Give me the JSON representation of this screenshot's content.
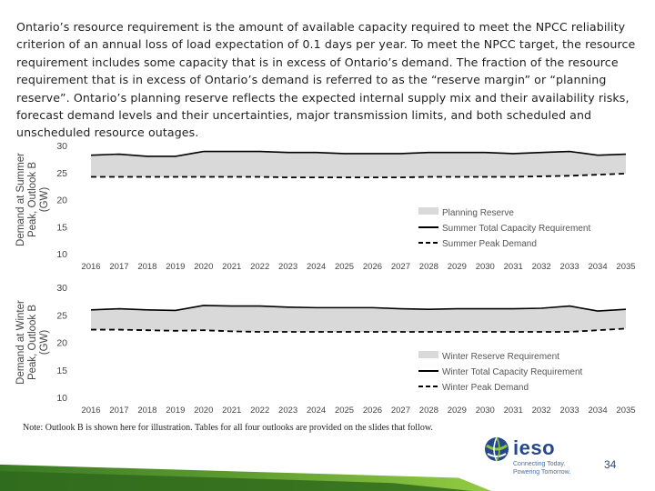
{
  "intro_text": "Ontario’s resource requirement is the amount of available capacity required to meet the NPCC reliability criterion of an annual loss of load expectation of 0.1 days per year. To meet the NPCC target, the resource requirement includes some capacity that is in excess of Ontario’s demand.  The fraction of the resource requirement that is in excess of Ontario’s demand is referred to as the “reserve margin” or “planning reserve”.  Ontario’s planning reserve reflects the expected internal supply mix  and their availability risks, forecast demand levels and their uncertainties, major transmission limits, and both scheduled and unscheduled resource outages.",
  "note": "Note: Outlook B is shown here for illustration. Tables for all four outlooks are provided on the slides that follow.",
  "page_number": "34",
  "logo": {
    "name": "ieso",
    "tagline_1": "Connecting Today.",
    "tagline_2": "Powering Tomorrow."
  },
  "colors": {
    "reserve_fill": "#d9d9d9",
    "line": "#000000",
    "axis_text": "#444444",
    "brand_blue": "#26488a",
    "brand_green": "#8cc63f"
  },
  "chart_data": [
    {
      "type": "area",
      "id": "summer",
      "ylabel_line1": "Demand at Summer",
      "ylabel_line2": "Peak, Outlook B",
      "ylabel_line3": "(GW)",
      "ylim": [
        10,
        30
      ],
      "yticks": [
        10,
        15,
        20,
        25,
        30
      ],
      "categories": [
        "2016",
        "2017",
        "2018",
        "2019",
        "2020",
        "2021",
        "2022",
        "2023",
        "2024",
        "2025",
        "2026",
        "2027",
        "2028",
        "2029",
        "2030",
        "2031",
        "2032",
        "2033",
        "2034",
        "2035"
      ],
      "legend_position": "right",
      "series": [
        {
          "name": "Planning Reserve",
          "kind": "band",
          "values": [
            28.2,
            28.4,
            28.0,
            28.0,
            28.9,
            28.9,
            28.9,
            28.7,
            28.7,
            28.5,
            28.5,
            28.5,
            28.7,
            28.7,
            28.7,
            28.5,
            28.7,
            28.9,
            28.2,
            28.4
          ]
        },
        {
          "name": "Summer Total Capacity Requirement",
          "kind": "solid",
          "values": [
            28.2,
            28.4,
            28.0,
            28.0,
            28.9,
            28.9,
            28.9,
            28.7,
            28.7,
            28.5,
            28.5,
            28.5,
            28.7,
            28.7,
            28.7,
            28.5,
            28.7,
            28.9,
            28.2,
            28.4
          ]
        },
        {
          "name": "Summer Peak Demand",
          "kind": "dashed",
          "values": [
            24.2,
            24.2,
            24.2,
            24.2,
            24.2,
            24.2,
            24.2,
            24.1,
            24.1,
            24.1,
            24.1,
            24.1,
            24.2,
            24.2,
            24.2,
            24.2,
            24.3,
            24.4,
            24.6,
            24.8
          ]
        }
      ]
    },
    {
      "type": "area",
      "id": "winter",
      "ylabel_line1": "Demand at Winter",
      "ylabel_line2": "Peak, Outlook B",
      "ylabel_line3": "(GW)",
      "ylim": [
        10,
        30
      ],
      "yticks": [
        10,
        15,
        20,
        25,
        30
      ],
      "categories": [
        "2016",
        "2017",
        "2018",
        "2019",
        "2020",
        "2021",
        "2022",
        "2023",
        "2024",
        "2025",
        "2026",
        "2027",
        "2028",
        "2029",
        "2030",
        "2031",
        "2032",
        "2033",
        "2034",
        "2035"
      ],
      "legend_position": "right",
      "series": [
        {
          "name": "Winter Reserve Requirement",
          "kind": "band",
          "values": [
            25.9,
            26.1,
            25.9,
            25.8,
            26.7,
            26.6,
            26.6,
            26.4,
            26.3,
            26.3,
            26.3,
            26.1,
            26.0,
            26.1,
            26.1,
            26.1,
            26.2,
            26.6,
            25.7,
            26.0
          ]
        },
        {
          "name": "Winter Total Capacity Requirement",
          "kind": "solid",
          "values": [
            25.9,
            26.1,
            25.9,
            25.8,
            26.7,
            26.6,
            26.6,
            26.4,
            26.3,
            26.3,
            26.3,
            26.1,
            26.0,
            26.1,
            26.1,
            26.1,
            26.2,
            26.6,
            25.7,
            26.0
          ]
        },
        {
          "name": "Winter Peak Demand",
          "kind": "dashed",
          "values": [
            22.3,
            22.3,
            22.2,
            22.1,
            22.2,
            22.0,
            21.9,
            21.9,
            21.9,
            21.9,
            21.9,
            21.9,
            21.9,
            21.9,
            21.9,
            21.9,
            21.9,
            21.9,
            22.2,
            22.5
          ]
        }
      ]
    }
  ]
}
